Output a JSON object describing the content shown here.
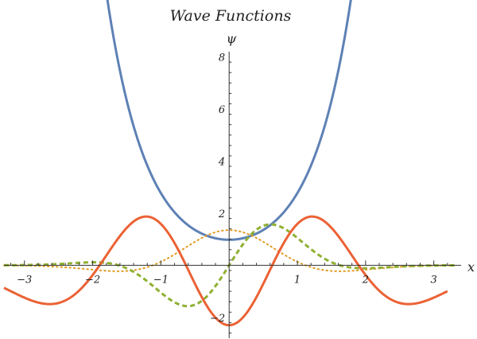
{
  "chart_data": {
    "type": "line",
    "title": "Wave Functions",
    "xlabel": "x",
    "ylabel": "ψ",
    "xlim": [
      -3.3,
      3.4
    ],
    "ylim": [
      -2.8,
      8.2
    ],
    "x_ticks": [
      -3,
      -2,
      -1,
      1,
      2,
      3
    ],
    "y_ticks": [
      -2,
      2,
      4,
      6,
      8
    ],
    "grid": false,
    "legend": "none",
    "series": [
      {
        "style": "solid",
        "color": "#5e81b5",
        "x_range": [
          -1.8,
          1.8
        ],
        "points": [
          [
            -1.8,
            7.6
          ],
          [
            -1.5,
            5.5
          ],
          [
            -1.2,
            3.8
          ],
          [
            -0.9,
            2.6
          ],
          [
            -0.6,
            1.72
          ],
          [
            -0.3,
            1.18
          ],
          [
            0,
            1.0
          ],
          [
            0.3,
            1.18
          ],
          [
            0.6,
            1.72
          ],
          [
            0.9,
            2.6
          ],
          [
            1.2,
            3.8
          ],
          [
            1.5,
            5.5
          ],
          [
            1.8,
            7.6
          ]
        ]
      },
      {
        "style": "dotted",
        "color": "#e19c24",
        "x_range": [
          -3.3,
          3.3
        ],
        "points": [
          [
            -3.0,
            0.0
          ],
          [
            -2.0,
            -0.12
          ],
          [
            -1.6,
            -0.36
          ],
          [
            -1.0,
            -0.1
          ],
          [
            -0.5,
            0.9
          ],
          [
            0,
            1.35
          ],
          [
            0.5,
            0.9
          ],
          [
            1.0,
            -0.1
          ],
          [
            1.6,
            -0.36
          ],
          [
            2.0,
            -0.12
          ],
          [
            3.0,
            0.0
          ]
        ]
      },
      {
        "style": "dashed",
        "color": "#8fb032",
        "x_range": [
          -3.3,
          3.3
        ],
        "points": [
          [
            -3.0,
            0.05
          ],
          [
            -2.0,
            0.6
          ],
          [
            -1.5,
            0.25
          ],
          [
            -0.75,
            -1.9
          ],
          [
            0,
            0.0
          ],
          [
            0.75,
            1.9
          ],
          [
            1.5,
            -0.25
          ],
          [
            2.0,
            -0.6
          ],
          [
            3.0,
            -0.05
          ]
        ]
      },
      {
        "style": "solid",
        "color": "#eb6235",
        "x_range": [
          -3.3,
          3.2
        ],
        "points": [
          [
            -3.0,
            -0.1
          ],
          [
            -2.3,
            -1.25
          ],
          [
            -1.8,
            -0.5
          ],
          [
            -1.1,
            2.75
          ],
          [
            -0.6,
            1.0
          ],
          [
            0,
            -2.3
          ],
          [
            0.6,
            1.0
          ],
          [
            1.1,
            2.75
          ],
          [
            1.8,
            -0.5
          ],
          [
            2.3,
            -1.25
          ],
          [
            3.0,
            -0.1
          ]
        ]
      }
    ]
  }
}
